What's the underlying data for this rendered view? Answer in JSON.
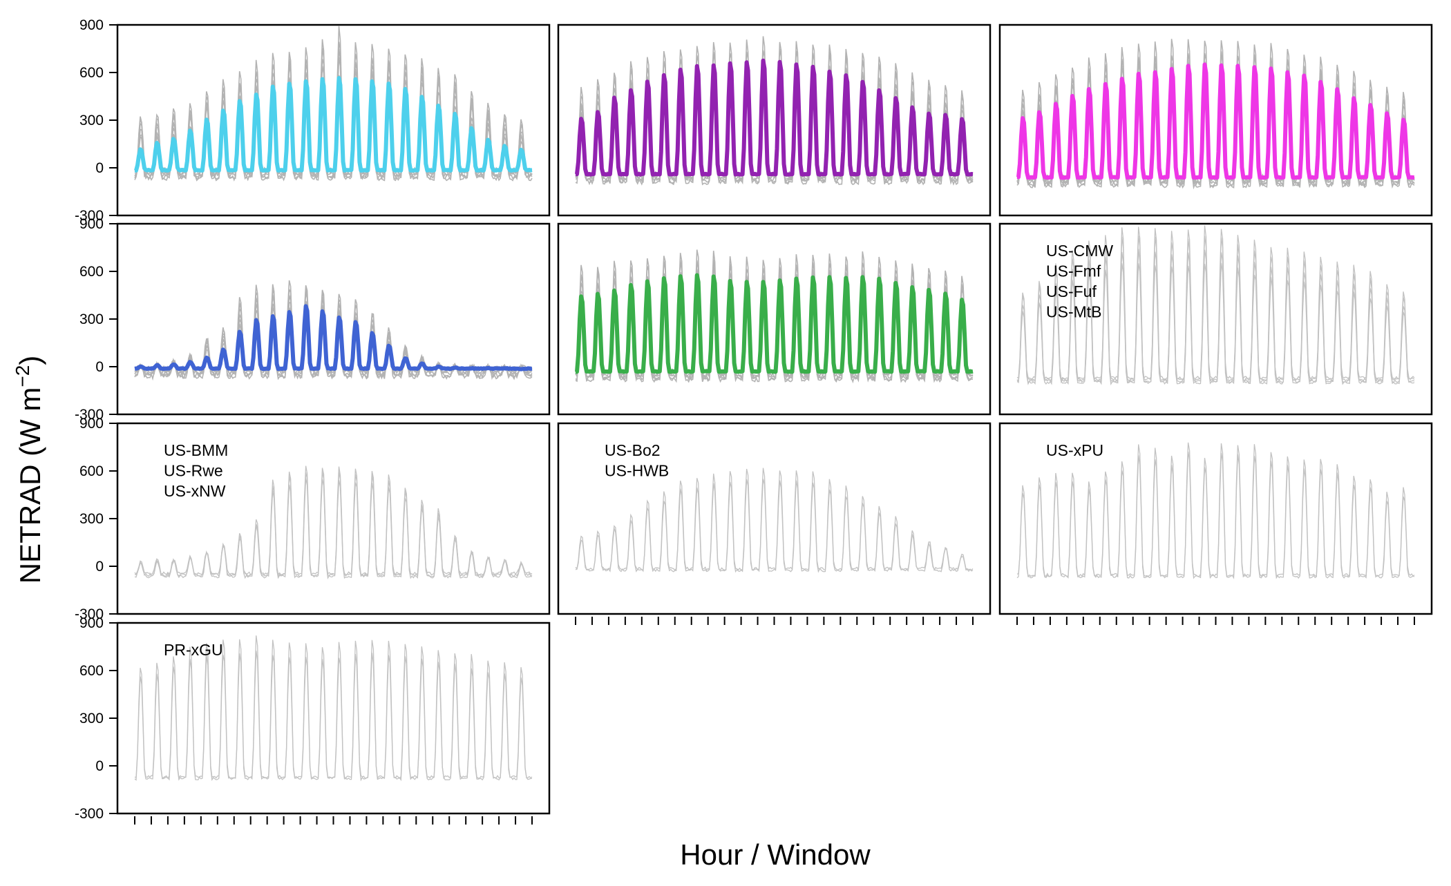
{
  "chart_data": {
    "type": "line",
    "ylabel_text": "NETRAD (W m",
    "ylabel_sup": "−2",
    "ylabel_close": ")",
    "xlabel": "Hour / Window",
    "ylim": [
      -300,
      900
    ],
    "y_ticks": [
      "-300",
      "0",
      "300",
      "600",
      "900"
    ],
    "y_tick_values": [
      -300,
      0,
      300,
      600,
      900
    ],
    "windows": 24,
    "panels": [
      {
        "name": "panel-cyan",
        "color": "#4dd0ec",
        "labels": [],
        "mean_peaks": [
          120,
          160,
          185,
          240,
          310,
          370,
          430,
          470,
          520,
          540,
          555,
          570,
          575,
          570,
          555,
          540,
          505,
          455,
          400,
          345,
          255,
          180,
          140,
          115
        ],
        "gray_peaks": [
          330,
          350,
          380,
          420,
          500,
          560,
          610,
          680,
          730,
          760,
          780,
          830,
          900,
          810,
          790,
          770,
          740,
          700,
          640,
          600,
          500,
          420,
          340,
          310
        ],
        "night": -15
      },
      {
        "name": "panel-purple",
        "color": "#9222b0",
        "labels": [],
        "mean_peaks": [
          315,
          360,
          450,
          500,
          555,
          595,
          630,
          655,
          660,
          670,
          680,
          690,
          680,
          665,
          650,
          620,
          595,
          555,
          500,
          450,
          390,
          350,
          340,
          315
        ],
        "gray_peaks": [
          500,
          560,
          610,
          670,
          700,
          740,
          760,
          780,
          800,
          800,
          810,
          820,
          810,
          800,
          790,
          780,
          760,
          740,
          700,
          660,
          600,
          560,
          520,
          480
        ],
        "night": -40
      },
      {
        "name": "panel-magenta",
        "color": "#ee36e6",
        "labels": [],
        "mean_peaks": [
          320,
          360,
          410,
          465,
          505,
          540,
          575,
          605,
          615,
          635,
          655,
          665,
          660,
          655,
          650,
          640,
          615,
          595,
          555,
          505,
          450,
          405,
          350,
          310
        ],
        "gray_peaks": [
          500,
          540,
          600,
          650,
          700,
          730,
          770,
          800,
          810,
          820,
          820,
          830,
          820,
          810,
          800,
          790,
          770,
          740,
          700,
          660,
          620,
          560,
          520,
          480
        ],
        "night": -60
      },
      {
        "name": "panel-blue",
        "color": "#3f63d3",
        "labels": [],
        "mean_peaks": [
          0,
          10,
          15,
          30,
          60,
          110,
          225,
          300,
          325,
          350,
          390,
          355,
          315,
          285,
          215,
          135,
          55,
          20,
          0,
          -5,
          -10,
          -10,
          -10,
          -15
        ],
        "gray_peaks": [
          10,
          20,
          40,
          80,
          190,
          250,
          450,
          530,
          540,
          560,
          550,
          520,
          480,
          430,
          360,
          250,
          140,
          60,
          20,
          10,
          0,
          0,
          0,
          0
        ],
        "night": -12
      },
      {
        "name": "panel-green",
        "color": "#39ae4a",
        "labels": [],
        "mean_peaks": [
          450,
          470,
          490,
          525,
          550,
          570,
          580,
          590,
          580,
          550,
          545,
          545,
          555,
          565,
          575,
          575,
          570,
          575,
          565,
          540,
          510,
          495,
          470,
          430
        ],
        "gray_peaks": [
          640,
          640,
          660,
          680,
          700,
          720,
          720,
          740,
          730,
          700,
          690,
          690,
          700,
          710,
          720,
          720,
          710,
          720,
          700,
          680,
          660,
          640,
          620,
          580
        ],
        "night": -30
      },
      {
        "name": "panel-cmw",
        "color": null,
        "labels": [
          "US-CMW",
          "US-Fmf",
          "US-Fuf",
          "US-MtB"
        ],
        "gray_peaks": [
          480,
          550,
          650,
          740,
          810,
          830,
          880,
          890,
          880,
          860,
          870,
          890,
          880,
          840,
          800,
          760,
          750,
          730,
          700,
          660,
          640,
          600,
          520,
          470
        ],
        "night": -70
      },
      {
        "name": "panel-bmm",
        "color": null,
        "labels": [
          "US-BMM",
          "US-Rwe",
          "US-xNW"
        ],
        "gray_peaks": [
          30,
          40,
          45,
          60,
          100,
          150,
          210,
          300,
          560,
          620,
          660,
          650,
          650,
          640,
          630,
          600,
          520,
          430,
          370,
          200,
          100,
          60,
          40,
          20
        ],
        "night": -45
      },
      {
        "name": "panel-bo2",
        "color": null,
        "labels": [
          "US-Bo2",
          "US-HWB"
        ],
        "gray_peaks": [
          190,
          220,
          260,
          330,
          420,
          470,
          540,
          560,
          580,
          600,
          620,
          620,
          610,
          600,
          590,
          550,
          500,
          450,
          380,
          310,
          220,
          160,
          120,
          80
        ],
        "night": -15
      },
      {
        "name": "panel-xpu",
        "color": null,
        "labels": [
          "US-xPU"
        ],
        "gray_peaks": [
          520,
          570,
          590,
          600,
          540,
          610,
          680,
          780,
          760,
          710,
          800,
          700,
          790,
          780,
          780,
          740,
          710,
          680,
          690,
          650,
          580,
          560,
          470,
          500
        ],
        "night": -55
      },
      {
        "name": "panel-xgu",
        "color": null,
        "labels": [
          "PR-xGU"
        ],
        "gray_peaks": [
          630,
          650,
          700,
          760,
          780,
          800,
          810,
          820,
          800,
          780,
          770,
          760,
          780,
          790,
          800,
          790,
          780,
          760,
          740,
          720,
          700,
          670,
          650,
          630
        ],
        "night": -70
      }
    ]
  }
}
